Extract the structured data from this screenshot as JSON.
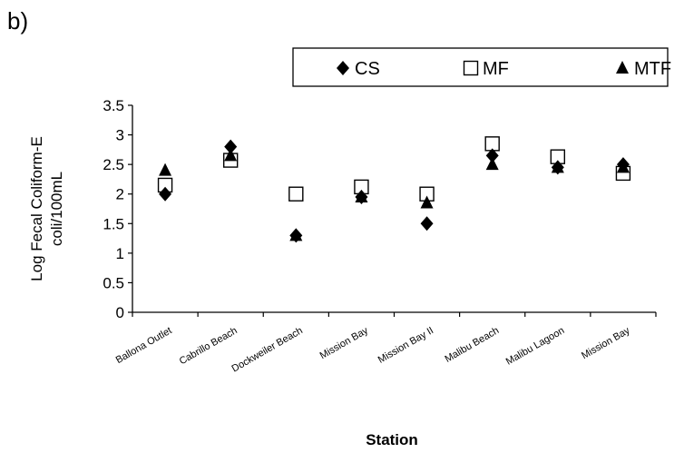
{
  "panel_label": "b)",
  "chart_data": {
    "type": "scatter",
    "title": "",
    "xlabel": "Station",
    "ylabel": "Log Fecal Coliform-E coli/100mL",
    "ylim": [
      0,
      3.5
    ],
    "yticks": [
      "0",
      "0.5",
      "1",
      "1.5",
      "2",
      "2.5",
      "3",
      "3.5"
    ],
    "grid": false,
    "legend_position": "top",
    "categories": [
      "Ballona Outlet",
      "Cabrillo Beach",
      "Dockweiler Beach",
      "Mission Bay",
      "Mission Bay II",
      "Malibu Beach",
      "Malibu Lagoon",
      "Mission Bay"
    ],
    "series": [
      {
        "name": "CS",
        "marker": "diamond",
        "color": "#000000",
        "values": [
          2.0,
          2.8,
          1.3,
          1.95,
          1.5,
          2.65,
          2.45,
          2.5
        ]
      },
      {
        "name": "MF",
        "marker": "square-open",
        "color": "#000000",
        "values": [
          2.15,
          2.57,
          2.0,
          2.12,
          2.0,
          2.85,
          2.63,
          2.35
        ]
      },
      {
        "name": "MTF",
        "marker": "triangle",
        "color": "#000000",
        "values": [
          2.4,
          2.65,
          1.3,
          1.95,
          1.85,
          2.5,
          2.45,
          2.45
        ]
      }
    ]
  }
}
